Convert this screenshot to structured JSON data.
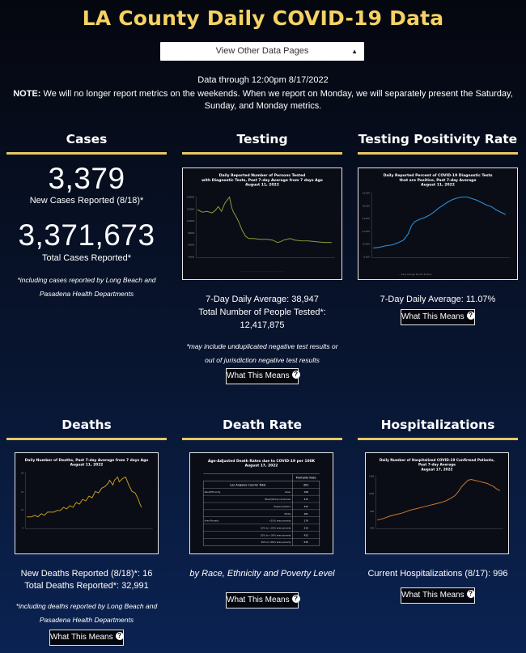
{
  "header": {
    "title": "LA County Daily COVID-19 Data",
    "dropdown_label": "View Other Data Pages",
    "data_through": "Data through 12:00pm 8/17/2022",
    "note_bold": "NOTE:",
    "note_text": " We will no longer report metrics on the weekends. When we report on Monday, we will separately present the Saturday, Sunday, and Monday metrics."
  },
  "cases": {
    "title": "Cases",
    "new_cases": "3,379",
    "new_cases_label": "New Cases Reported (8/18)*",
    "total_cases": "3,371,673",
    "total_cases_label": "Total Cases Reported*",
    "footnote": "*including cases reported by Long Beach and Pasadena Health Departments"
  },
  "testing": {
    "title": "Testing",
    "chart_title": "Daily Reported Number of Persons Tested with Diagnostic Tests, Past 7-day Average from 7 days Ago",
    "chart_date": "August 11, 2022",
    "avg_label": "7-Day Daily Average: 38,947",
    "total_label": "Total Number of People Tested*:",
    "total_value": "12,417,875",
    "footnote": "*may include unduplicated negative test results or out of jurisdiction negative test results",
    "button": "What This Means"
  },
  "positivity": {
    "title": "Testing Positivity Rate",
    "chart_title": "Daily Reported Percent of COVID-19 Diagnostic Tests that are Positive, Past 7-day Average",
    "chart_date": "August 11, 2022",
    "avg_label": "7-Day Daily Average: 11.07%",
    "button": "What This Means"
  },
  "deaths": {
    "title": "Deaths",
    "chart_title": "Daily Number of Deaths, Past 7-day Average from 7 days Ago",
    "chart_date": "August 11, 2022",
    "new_label": "New Deaths Reported (8/18)*: 16",
    "total_label": "Total Deaths Reported*: 32,991",
    "footnote": "*including deaths reported by Long Beach and Pasadena Health Departments",
    "button": "What This Means"
  },
  "death_rate": {
    "title": "Death Rate",
    "chart_title": "Age-Adjusted Death Rates due to COVID-19 per 100K",
    "chart_date": "August 17, 2022",
    "table_header": "Mortality Rate",
    "table_rows": [
      {
        "group": "Los Angeles County Total",
        "sub": "",
        "value": "301"
      },
      {
        "group": "Race/Ethnicity",
        "sub": "Asian",
        "value": "198"
      },
      {
        "group": "",
        "sub": "Black/African American",
        "value": "315"
      },
      {
        "group": "",
        "sub": "Hispanic/Latino",
        "value": "432"
      },
      {
        "group": "",
        "sub": "White",
        "value": "181"
      },
      {
        "group": "Area Poverty",
        "sub": "<10% area poverty",
        "value": "179"
      },
      {
        "group": "",
        "sub": "10% to <20% area poverty",
        "value": "310"
      },
      {
        "group": "",
        "sub": "20% to <30% area poverty",
        "value": "432"
      },
      {
        "group": "",
        "sub": "30% to 100% area poverty",
        "value": "535"
      }
    ],
    "caption": "by Race, Ethnicity and Poverty Level",
    "button": "What This Means"
  },
  "hospitalizations": {
    "title": "Hospitalizations",
    "chart_title": "Daily Number of Hospitalized COVID-19 Confirmed Patients, Past 7-day Average",
    "chart_date": "August 17, 2022",
    "current_label": "Current Hospitalizations (8/17): 996",
    "button": "What This Means"
  },
  "colors": {
    "accent_gold": "#f6d264",
    "testing_line": "#8a9e3a",
    "positivity_line": "#2f8fd6",
    "deaths_line": "#c79a1e",
    "hospital_line": "#d2782a"
  }
}
